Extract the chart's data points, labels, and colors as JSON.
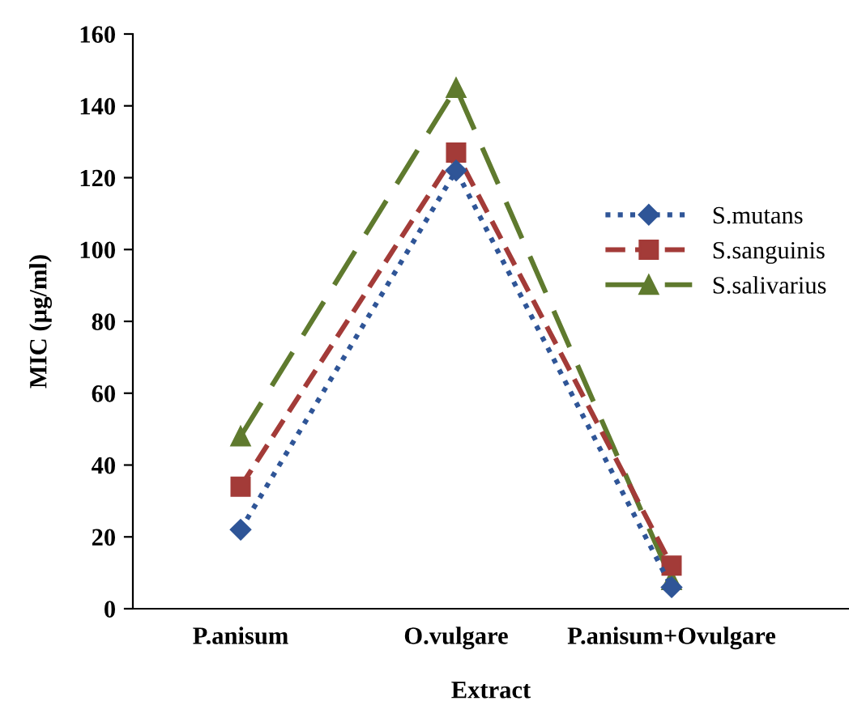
{
  "chart_data": {
    "type": "line",
    "xlabel": "Extract",
    "ylabel": "MIC (µg/ml)",
    "categories": [
      "P.anisum",
      "O.vulgare",
      "P.anisum+Ovulgare"
    ],
    "series": [
      {
        "name": "S.mutans",
        "color": "#2f5597",
        "values": [
          22,
          122,
          6
        ],
        "marker": "diamond",
        "line_style": "dotted"
      },
      {
        "name": "S.sanguinis",
        "color": "#a33b38",
        "values": [
          34,
          127,
          12
        ],
        "marker": "square",
        "line_style": "dashed"
      },
      {
        "name": "S.salivarius",
        "color": "#5f7a2e",
        "values": [
          48,
          145,
          8
        ],
        "marker": "triangle",
        "line_style": "longdash"
      }
    ],
    "ylim": [
      0,
      160
    ],
    "yticks": [
      0,
      20,
      40,
      60,
      80,
      100,
      120,
      140,
      160
    ],
    "grid": false,
    "legend": "right"
  }
}
